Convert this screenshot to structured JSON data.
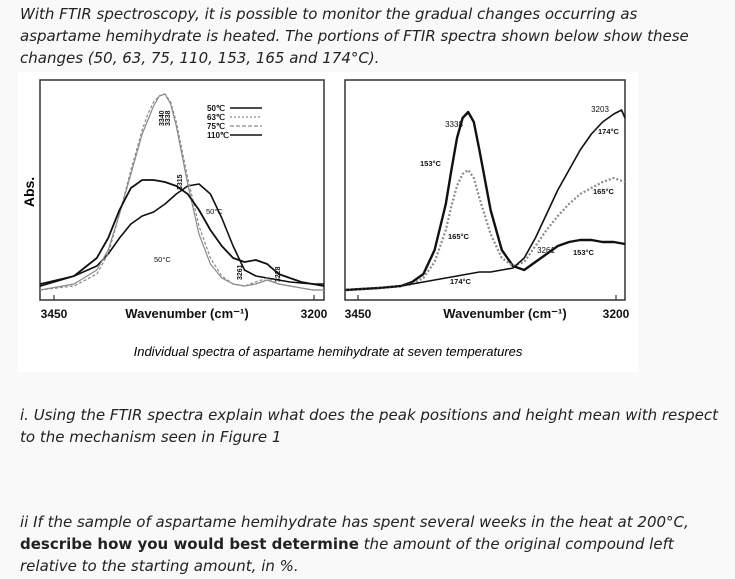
{
  "intro_text": "With FTIR spectroscopy, it is possible to monitor the gradual changes occurring as aspartame hemihydrate is heated. The portions of FTIR spectra shown below show these changes (50, 63, 75, 110, 153, 165 and 174°C).",
  "question_1": "i. Using the FTIR spectra explain what does the peak positions and height mean with respect to the mechanism seen in Figure 1",
  "question_2": {
    "prefix": "ii If the sample of aspartame hemihydrate has spent several weeks in the heat at 200°C, ",
    "bold": "describe how you would best determine",
    "suffix": " the amount of the original compound left relative to the starting amount, in %."
  },
  "figure": {
    "ylabel": "Abs.",
    "caption": "Individual spectra of aspartame hemihydrate at seven temperatures"
  },
  "colors": {
    "line": "#111111",
    "grey": "#8a8a8a",
    "frame": "#333333"
  },
  "chart_data": [
    {
      "type": "line",
      "xlabel": "Wavenumber (cm⁻¹)",
      "ylabel": "Abs.",
      "xlim": [
        3450,
        3200
      ],
      "x_ticks": [
        "3450",
        "3200"
      ],
      "legend": [
        "50℃",
        "63℃",
        "75℃",
        "110℃"
      ],
      "peak_labels": [
        "3340",
        "3338",
        "3315",
        "3261",
        "3228"
      ],
      "annotations": [
        "50°C",
        "50°C"
      ],
      "series": [
        {
          "name": "50℃",
          "x": [
            3450,
            3420,
            3400,
            3390,
            3380,
            3370,
            3360,
            3350,
            3340,
            3330,
            3320,
            3310,
            3300,
            3290,
            3280,
            3270,
            3260,
            3250,
            3240,
            3230,
            3220,
            3210,
            3200
          ],
          "y": [
            0.05,
            0.09,
            0.14,
            0.2,
            0.28,
            0.35,
            0.39,
            0.41,
            0.45,
            0.5,
            0.54,
            0.55,
            0.5,
            0.38,
            0.24,
            0.12,
            0.09,
            0.08,
            0.07,
            0.06,
            0.055,
            0.05,
            0.05
          ]
        },
        {
          "name": "63℃",
          "x": [
            3450,
            3420,
            3400,
            3390,
            3380,
            3370,
            3360,
            3355,
            3350,
            3345,
            3340,
            3335,
            3330,
            3320,
            3310,
            3300,
            3290,
            3280,
            3270,
            3260,
            3250,
            3240,
            3230,
            3220,
            3210,
            3200
          ],
          "y": [
            0.02,
            0.04,
            0.1,
            0.2,
            0.4,
            0.62,
            0.82,
            0.9,
            0.96,
            0.99,
            1.0,
            0.96,
            0.86,
            0.58,
            0.34,
            0.18,
            0.09,
            0.05,
            0.04,
            0.06,
            0.08,
            0.05,
            0.04,
            0.03,
            0.02,
            0.02
          ]
        },
        {
          "name": "75℃",
          "x": [
            3450,
            3420,
            3400,
            3390,
            3380,
            3370,
            3360,
            3350,
            3345,
            3340,
            3335,
            3330,
            3320,
            3310,
            3300,
            3290,
            3280,
            3270,
            3260,
            3250,
            3240,
            3230,
            3220,
            3210,
            3200
          ],
          "y": [
            0.02,
            0.05,
            0.12,
            0.22,
            0.4,
            0.6,
            0.8,
            0.94,
            0.99,
            1.0,
            0.95,
            0.84,
            0.55,
            0.3,
            0.15,
            0.08,
            0.05,
            0.04,
            0.05,
            0.07,
            0.05,
            0.04,
            0.03,
            0.02,
            0.02
          ]
        },
        {
          "name": "110℃",
          "x": [
            3450,
            3420,
            3400,
            3390,
            3380,
            3370,
            3360,
            3350,
            3340,
            3330,
            3320,
            3310,
            3300,
            3290,
            3280,
            3270,
            3260,
            3250,
            3240,
            3230,
            3220,
            3210,
            3200
          ],
          "y": [
            0.04,
            0.09,
            0.18,
            0.28,
            0.42,
            0.53,
            0.57,
            0.57,
            0.56,
            0.54,
            0.5,
            0.42,
            0.32,
            0.24,
            0.18,
            0.16,
            0.17,
            0.15,
            0.1,
            0.08,
            0.06,
            0.05,
            0.04
          ]
        }
      ]
    },
    {
      "type": "line",
      "xlabel": "Wavenumber (cm⁻¹)",
      "xlim": [
        3450,
        3200
      ],
      "x_ticks": [
        "3450",
        "3200"
      ],
      "peak_labels": [
        "3338",
        "3203",
        "3261"
      ],
      "series_labels": [
        "153°C",
        "165°C",
        "174°C",
        "153°C",
        "165°C",
        "174°C"
      ],
      "series": [
        {
          "name": "153°C",
          "x": [
            3450,
            3420,
            3400,
            3390,
            3380,
            3370,
            3360,
            3355,
            3350,
            3345,
            3340,
            3335,
            3330,
            3320,
            3310,
            3300,
            3290,
            3280,
            3270,
            3260,
            3250,
            3240,
            3230,
            3220,
            3210,
            3200
          ],
          "y": [
            0.02,
            0.03,
            0.04,
            0.06,
            0.1,
            0.22,
            0.45,
            0.62,
            0.78,
            0.88,
            0.91,
            0.86,
            0.72,
            0.42,
            0.22,
            0.14,
            0.12,
            0.16,
            0.2,
            0.24,
            0.26,
            0.27,
            0.27,
            0.26,
            0.26,
            0.25
          ]
        },
        {
          "name": "165°C",
          "x": [
            3450,
            3420,
            3400,
            3390,
            3380,
            3370,
            3360,
            3355,
            3350,
            3345,
            3340,
            3335,
            3330,
            3320,
            3310,
            3300,
            3290,
            3280,
            3270,
            3260,
            3250,
            3240,
            3230,
            3220,
            3210,
            3200
          ],
          "y": [
            0.02,
            0.03,
            0.04,
            0.05,
            0.08,
            0.16,
            0.32,
            0.44,
            0.54,
            0.6,
            0.62,
            0.58,
            0.48,
            0.3,
            0.18,
            0.14,
            0.16,
            0.24,
            0.32,
            0.39,
            0.45,
            0.5,
            0.53,
            0.56,
            0.58,
            0.56
          ]
        },
        {
          "name": "174°C",
          "x": [
            3450,
            3420,
            3400,
            3390,
            3380,
            3370,
            3360,
            3350,
            3340,
            3330,
            3320,
            3310,
            3300,
            3290,
            3280,
            3270,
            3260,
            3250,
            3240,
            3230,
            3220,
            3210,
            3203,
            3200
          ],
          "y": [
            0.02,
            0.03,
            0.04,
            0.05,
            0.06,
            0.07,
            0.08,
            0.09,
            0.1,
            0.11,
            0.11,
            0.12,
            0.13,
            0.18,
            0.28,
            0.4,
            0.52,
            0.62,
            0.72,
            0.8,
            0.86,
            0.9,
            0.92,
            0.88
          ]
        }
      ]
    }
  ]
}
